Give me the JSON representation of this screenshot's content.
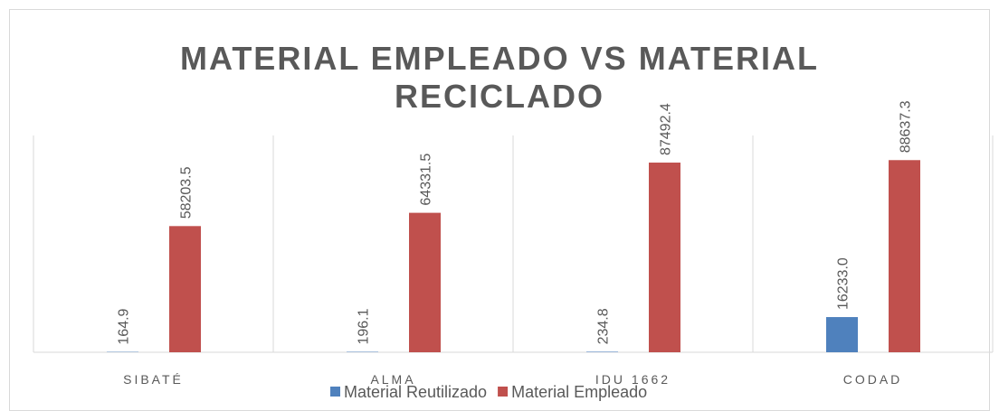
{
  "chart_data": {
    "type": "bar",
    "title": "MATERIAL EMPLEADO VS MATERIAL RECICLADO",
    "categories": [
      "SIBATÉ",
      "ALMA",
      "IDU 1662",
      "CODAD"
    ],
    "series": [
      {
        "name": "Material Reutilizado",
        "color": "#4f81bd",
        "values": [
          164.9,
          196.1,
          234.8,
          16233.0
        ],
        "value_labels": [
          "164.9",
          "196.1",
          "234.8",
          "16233.0"
        ]
      },
      {
        "name": "Material Empleado",
        "color": "#c0504d",
        "values": [
          58203.5,
          64331.5,
          87492.4,
          88637.3
        ],
        "value_labels": [
          "58203.5",
          "64331.5",
          "87492.4",
          "88637.3"
        ]
      }
    ],
    "ylim": [
      0,
      100000
    ],
    "legend": "bottom"
  }
}
